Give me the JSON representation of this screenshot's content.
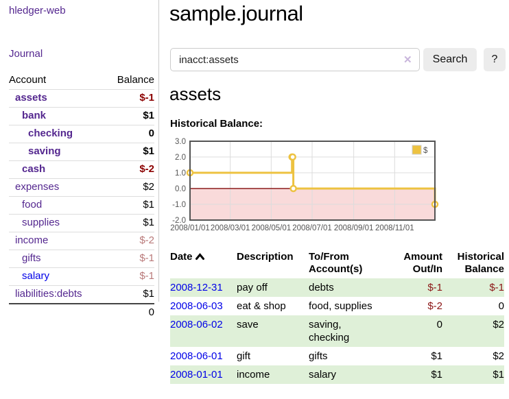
{
  "app": {
    "title": "hledger-web"
  },
  "sidebar": {
    "journal_link": "Journal",
    "accounts_table": {
      "account_header": "Account",
      "balance_header": "Balance",
      "rows": [
        {
          "name": "assets",
          "balance": "$-1",
          "level": 1,
          "bold": true,
          "neg": "dark"
        },
        {
          "name": "bank",
          "balance": "$1",
          "level": 2,
          "bold": true
        },
        {
          "name": "checking",
          "balance": "0",
          "level": 3,
          "bold": true
        },
        {
          "name": "saving",
          "balance": "$1",
          "level": 3,
          "bold": true
        },
        {
          "name": "cash",
          "balance": "$-2",
          "level": 2,
          "bold": true,
          "neg": "dark"
        },
        {
          "name": "expenses",
          "balance": "$2",
          "level": 1
        },
        {
          "name": "food",
          "balance": "$1",
          "level": 2
        },
        {
          "name": "supplies",
          "balance": "$1",
          "level": 2
        },
        {
          "name": "income",
          "balance": "$-2",
          "level": 1,
          "neg": "dim"
        },
        {
          "name": "gifts",
          "balance": "$-1",
          "level": 2,
          "neg": "dim"
        },
        {
          "name": "salary",
          "balance": "$-1",
          "level": 2,
          "neg": "dim",
          "unvisited": true
        },
        {
          "name": "liabilities:debts",
          "balance": "$1",
          "level": 1
        }
      ],
      "total": "0"
    }
  },
  "main": {
    "title": "sample.journal",
    "search": {
      "value": "inacct:assets",
      "clear_icon": "✕",
      "search_button": "Search",
      "help_button": "?"
    },
    "account_heading": "assets",
    "chart_label": "Historical Balance:"
  },
  "register": {
    "headers": {
      "date": "Date",
      "description": "Description",
      "accounts": "To/From Account(s)",
      "amount": "Amount Out/In",
      "balance": "Historical Balance"
    },
    "rows": [
      {
        "date": "2008-12-31",
        "description": "pay off",
        "accounts": "debts",
        "amount": "$-1",
        "balance": "$-1"
      },
      {
        "date": "2008-06-03",
        "description": "eat & shop",
        "accounts": "food, supplies",
        "amount": "$-2",
        "balance": "0"
      },
      {
        "date": "2008-06-02",
        "description": "save",
        "accounts": "saving, checking",
        "amount": "0",
        "balance": "$2"
      },
      {
        "date": "2008-06-01",
        "description": "gift",
        "accounts": "gifts",
        "amount": "$1",
        "balance": "$2"
      },
      {
        "date": "2008-01-01",
        "description": "income",
        "accounts": "salary",
        "amount": "$1",
        "balance": "$1"
      }
    ]
  },
  "chart_data": {
    "type": "line",
    "style": "steps",
    "title": "Historical Balance:",
    "series": [
      {
        "name": "$",
        "color": "#edc240",
        "points": [
          [
            "2008-01-01",
            1
          ],
          [
            "2008-06-01",
            2
          ],
          [
            "2008-06-02",
            2
          ],
          [
            "2008-06-03",
            0
          ],
          [
            "2008-12-31",
            -1
          ]
        ]
      }
    ],
    "xlim": [
      "2008-01-01",
      "2008-12-31"
    ],
    "ylim": [
      -2,
      3
    ],
    "x_ticks": [
      "2008/01/01",
      "2008/03/01",
      "2008/05/01",
      "2008/07/01",
      "2008/09/01",
      "2008/11/01"
    ],
    "y_ticks": [
      3.0,
      2.0,
      1.0,
      0.0,
      -1.0,
      -2.0
    ],
    "grid": true,
    "legend_position": "top-right",
    "negative_region_color": "#f9dada",
    "zero_line_color": "#8b1a1a",
    "border_color": "#545454",
    "grid_color": "#dcdcdc"
  },
  "colors": {
    "link_purple": "#54278f",
    "link_blue": "#0000e8",
    "negative_dark": "#8b0000",
    "negative_dim": "#b97979",
    "table_negative": "#8b1515",
    "row_highlight_green": "#dff0d8",
    "chart_series_gold": "#edc240"
  }
}
